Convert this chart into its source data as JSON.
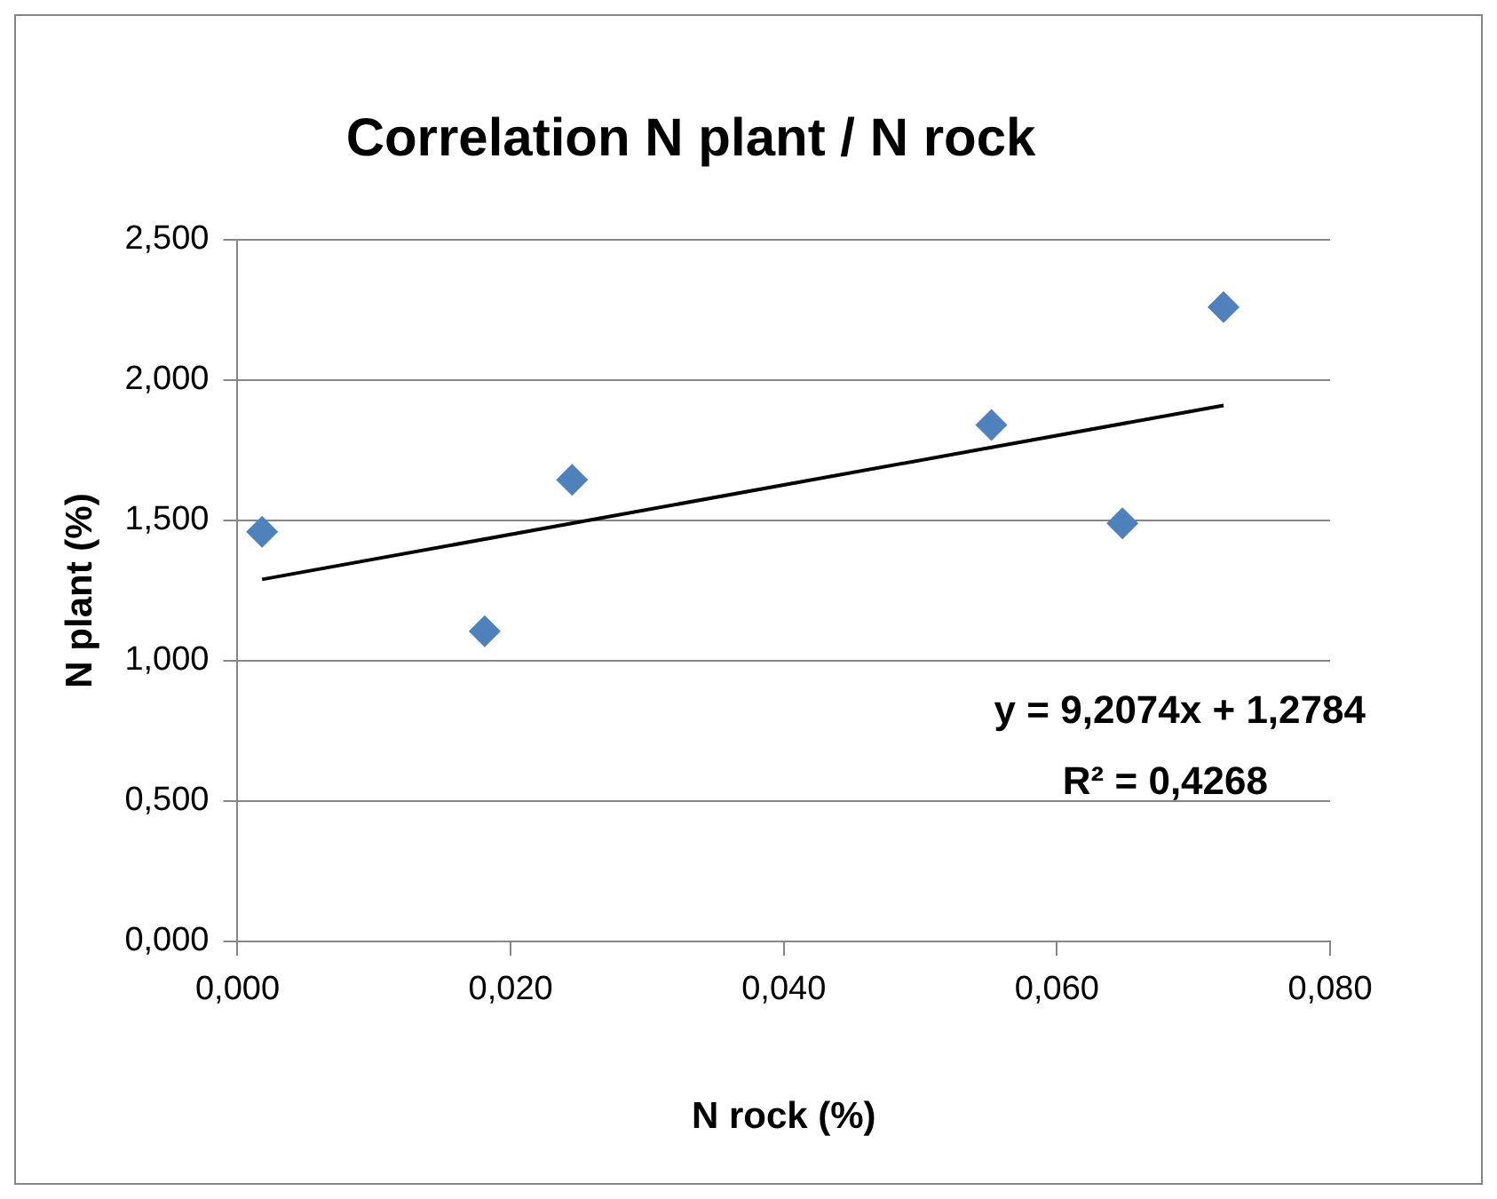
{
  "chart_data": {
    "type": "scatter",
    "title": "Correlation N plant / N rock",
    "xlabel": "N rock (%)",
    "ylabel": "N plant (%)",
    "series": [
      {
        "type": "scatter",
        "color": "#4f81bd",
        "marker": "diamond",
        "x": [
          0.0018,
          0.0181,
          0.0245,
          0.0552,
          0.0648,
          0.0722
        ],
        "values": [
          1.46,
          1.105,
          1.645,
          1.84,
          1.49,
          2.26
        ]
      },
      {
        "type": "line",
        "color": "#000000",
        "marker": "none",
        "line_style": "solid",
        "x": [
          0.0018,
          0.0722
        ],
        "values": [
          1.29,
          1.91
        ]
      }
    ],
    "xlim": [
      0,
      0.08
    ],
    "ylim": [
      0,
      2.5
    ],
    "xticks": [
      {
        "value": 0,
        "label": "0,000"
      },
      {
        "value": 0.02,
        "label": "0,020"
      },
      {
        "value": 0.04,
        "label": "0,040"
      },
      {
        "value": 0.06,
        "label": "0,060"
      },
      {
        "value": 0.08,
        "label": "0,080"
      }
    ],
    "yticks": [
      {
        "value": 0,
        "label": "0,000"
      },
      {
        "value": 0.5,
        "label": "0,500"
      },
      {
        "value": 1,
        "label": "1,000"
      },
      {
        "value": 1.5,
        "label": "1,500"
      },
      {
        "value": 2,
        "label": "2,000"
      },
      {
        "value": 2.5,
        "label": "2,500"
      }
    ],
    "grid": "y",
    "legend": false,
    "annotations": [
      "y = 9,2074x + 1,2784",
      "R² = 0,4268"
    ]
  }
}
